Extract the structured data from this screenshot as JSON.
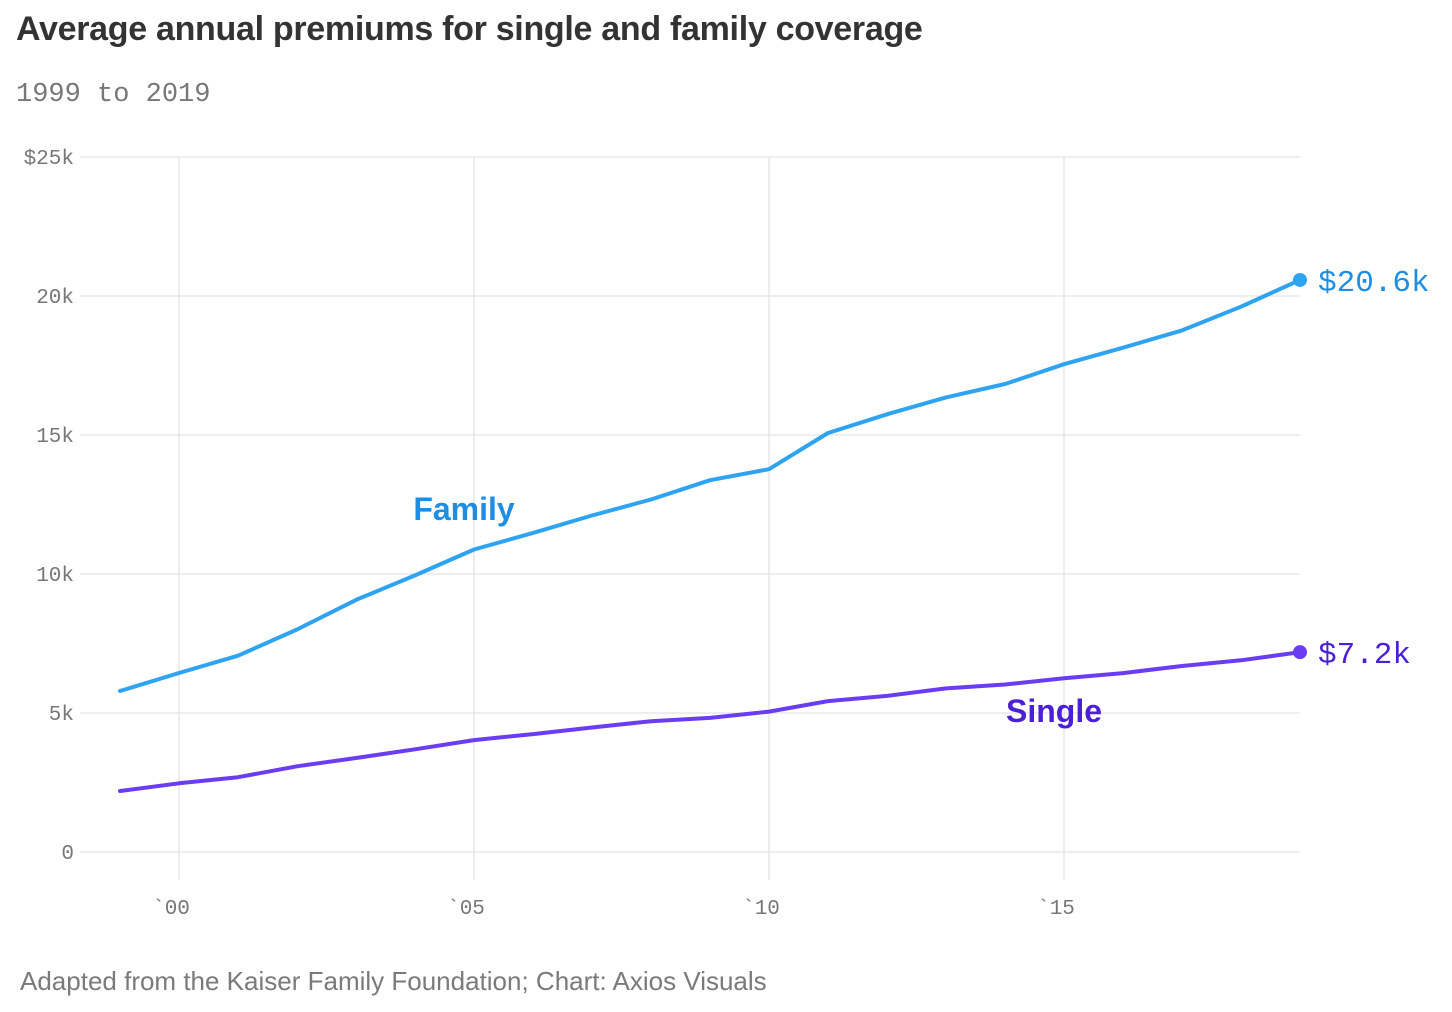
{
  "chart_data": {
    "type": "line",
    "title": "Average annual premiums for single and family coverage",
    "subtitle": "1999 to 2019",
    "source": "Adapted from the Kaiser Family Foundation; Chart: Axios Visuals",
    "xlabel": "",
    "ylabel": "",
    "x": [
      1999,
      2000,
      2001,
      2002,
      2003,
      2004,
      2005,
      2006,
      2007,
      2008,
      2009,
      2010,
      2011,
      2012,
      2013,
      2014,
      2015,
      2016,
      2017,
      2018,
      2019
    ],
    "xlim": [
      1999,
      2019
    ],
    "ylim": [
      0,
      25000
    ],
    "grid": true,
    "x_ticks": [
      {
        "value": 2000,
        "label": "`00"
      },
      {
        "value": 2005,
        "label": "`05"
      },
      {
        "value": 2010,
        "label": "`10"
      },
      {
        "value": 2015,
        "label": "`15"
      }
    ],
    "y_ticks": [
      {
        "value": 0,
        "label": "0"
      },
      {
        "value": 5000,
        "label": "5k"
      },
      {
        "value": 10000,
        "label": "10k"
      },
      {
        "value": 15000,
        "label": "15k"
      },
      {
        "value": 20000,
        "label": "20k"
      },
      {
        "value": 25000,
        "label": "$25k"
      }
    ],
    "series": [
      {
        "name": "Family",
        "color": "#2ea3f2",
        "label_color": "#1e8ee3",
        "values": [
          5791,
          6438,
          7061,
          8003,
          9068,
          9950,
          10880,
          11480,
          12106,
          12680,
          13375,
          13770,
          15073,
          15745,
          16351,
          16834,
          17545,
          18142,
          18764,
          19616,
          20576
        ],
        "end_label": "$20.6k"
      },
      {
        "name": "Single",
        "color": "#6a3df2",
        "label_color": "#4a1fd6",
        "values": [
          2196,
          2471,
          2689,
          3083,
          3383,
          3695,
          4024,
          4242,
          4479,
          4704,
          4824,
          5049,
          5429,
          5615,
          5884,
          6025,
          6251,
          6435,
          6690,
          6896,
          7188
        ],
        "end_label": "$7.2k"
      }
    ]
  }
}
